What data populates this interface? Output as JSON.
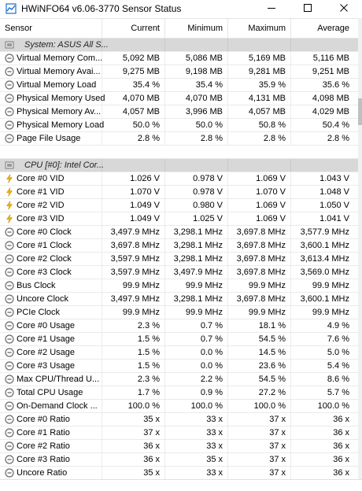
{
  "window": {
    "title": "HWiNFO64 v6.06-3770 Sensor Status",
    "minimize_icon": "minimize-icon",
    "maximize_icon": "maximize-icon",
    "close_icon": "close-icon"
  },
  "columns": [
    "Sensor",
    "Current",
    "Minimum",
    "Maximum",
    "Average"
  ],
  "rows": [
    {
      "kind": "group",
      "name": "System: ASUS All S..."
    },
    {
      "kind": "data",
      "icon": "clock",
      "name": "Virtual Memory Com...",
      "current": "5,092 MB",
      "minimum": "5,086 MB",
      "maximum": "5,169 MB",
      "average": "5,116 MB"
    },
    {
      "kind": "data",
      "icon": "clock",
      "name": "Virtual Memory Avai...",
      "current": "9,275 MB",
      "minimum": "9,198 MB",
      "maximum": "9,281 MB",
      "average": "9,251 MB"
    },
    {
      "kind": "data",
      "icon": "clock",
      "name": "Virtual Memory Load",
      "current": "35.4 %",
      "minimum": "35.4 %",
      "maximum": "35.9 %",
      "average": "35.6 %"
    },
    {
      "kind": "data",
      "icon": "clock",
      "name": "Physical Memory Used",
      "current": "4,070 MB",
      "minimum": "4,070 MB",
      "maximum": "4,131 MB",
      "average": "4,098 MB"
    },
    {
      "kind": "data",
      "icon": "clock",
      "name": "Physical Memory Av...",
      "current": "4,057 MB",
      "minimum": "3,996 MB",
      "maximum": "4,057 MB",
      "average": "4,029 MB"
    },
    {
      "kind": "data",
      "icon": "clock",
      "name": "Physical Memory Load",
      "current": "50.0 %",
      "minimum": "50.0 %",
      "maximum": "50.8 %",
      "average": "50.4 %"
    },
    {
      "kind": "data",
      "icon": "clock",
      "name": "Page File Usage",
      "current": "2.8 %",
      "minimum": "2.8 %",
      "maximum": "2.8 %",
      "average": "2.8 %"
    },
    {
      "kind": "spacer"
    },
    {
      "kind": "group",
      "name": "CPU [#0]: Intel Cor..."
    },
    {
      "kind": "data",
      "icon": "bolt",
      "name": "Core #0 VID",
      "current": "1.026 V",
      "minimum": "0.978 V",
      "maximum": "1.069 V",
      "average": "1.043 V"
    },
    {
      "kind": "data",
      "icon": "bolt",
      "name": "Core #1 VID",
      "current": "1.070 V",
      "minimum": "0.978 V",
      "maximum": "1.070 V",
      "average": "1.048 V"
    },
    {
      "kind": "data",
      "icon": "bolt",
      "name": "Core #2 VID",
      "current": "1.049 V",
      "minimum": "0.980 V",
      "maximum": "1.069 V",
      "average": "1.050 V"
    },
    {
      "kind": "data",
      "icon": "bolt",
      "name": "Core #3 VID",
      "current": "1.049 V",
      "minimum": "1.025 V",
      "maximum": "1.069 V",
      "average": "1.041 V"
    },
    {
      "kind": "data",
      "icon": "clock",
      "name": "Core #0 Clock",
      "current": "3,497.9 MHz",
      "minimum": "3,298.1 MHz",
      "maximum": "3,697.8 MHz",
      "average": "3,577.9 MHz"
    },
    {
      "kind": "data",
      "icon": "clock",
      "name": "Core #1 Clock",
      "current": "3,697.8 MHz",
      "minimum": "3,298.1 MHz",
      "maximum": "3,697.8 MHz",
      "average": "3,600.1 MHz"
    },
    {
      "kind": "data",
      "icon": "clock",
      "name": "Core #2 Clock",
      "current": "3,597.9 MHz",
      "minimum": "3,298.1 MHz",
      "maximum": "3,697.8 MHz",
      "average": "3,613.4 MHz"
    },
    {
      "kind": "data",
      "icon": "clock",
      "name": "Core #3 Clock",
      "current": "3,597.9 MHz",
      "minimum": "3,497.9 MHz",
      "maximum": "3,697.8 MHz",
      "average": "3,569.0 MHz"
    },
    {
      "kind": "data",
      "icon": "clock",
      "name": "Bus Clock",
      "current": "99.9 MHz",
      "minimum": "99.9 MHz",
      "maximum": "99.9 MHz",
      "average": "99.9 MHz"
    },
    {
      "kind": "data",
      "icon": "clock",
      "name": "Uncore Clock",
      "current": "3,497.9 MHz",
      "minimum": "3,298.1 MHz",
      "maximum": "3,697.8 MHz",
      "average": "3,600.1 MHz"
    },
    {
      "kind": "data",
      "icon": "clock",
      "name": "PCIe Clock",
      "current": "99.9 MHz",
      "minimum": "99.9 MHz",
      "maximum": "99.9 MHz",
      "average": "99.9 MHz"
    },
    {
      "kind": "data",
      "icon": "clock",
      "name": "Core #0 Usage",
      "current": "2.3 %",
      "minimum": "0.7 %",
      "maximum": "18.1 %",
      "average": "4.9 %"
    },
    {
      "kind": "data",
      "icon": "clock",
      "name": "Core #1 Usage",
      "current": "1.5 %",
      "minimum": "0.7 %",
      "maximum": "54.5 %",
      "average": "7.6 %"
    },
    {
      "kind": "data",
      "icon": "clock",
      "name": "Core #2 Usage",
      "current": "1.5 %",
      "minimum": "0.0 %",
      "maximum": "14.5 %",
      "average": "5.0 %"
    },
    {
      "kind": "data",
      "icon": "clock",
      "name": "Core #3 Usage",
      "current": "1.5 %",
      "minimum": "0.0 %",
      "maximum": "23.6 %",
      "average": "5.4 %"
    },
    {
      "kind": "data",
      "icon": "clock",
      "name": "Max CPU/Thread U...",
      "current": "2.3 %",
      "minimum": "2.2 %",
      "maximum": "54.5 %",
      "average": "8.6 %"
    },
    {
      "kind": "data",
      "icon": "clock",
      "name": "Total CPU Usage",
      "current": "1.7 %",
      "minimum": "0.9 %",
      "maximum": "27.2 %",
      "average": "5.7 %"
    },
    {
      "kind": "data",
      "icon": "clock",
      "name": "On-Demand Clock ...",
      "current": "100.0 %",
      "minimum": "100.0 %",
      "maximum": "100.0 %",
      "average": "100.0 %"
    },
    {
      "kind": "data",
      "icon": "clock",
      "name": "Core #0 Ratio",
      "current": "35 x",
      "minimum": "33 x",
      "maximum": "37 x",
      "average": "36 x"
    },
    {
      "kind": "data",
      "icon": "clock",
      "name": "Core #1 Ratio",
      "current": "37 x",
      "minimum": "33 x",
      "maximum": "37 x",
      "average": "36 x"
    },
    {
      "kind": "data",
      "icon": "clock",
      "name": "Core #2 Ratio",
      "current": "36 x",
      "minimum": "33 x",
      "maximum": "37 x",
      "average": "36 x"
    },
    {
      "kind": "data",
      "icon": "clock",
      "name": "Core #3 Ratio",
      "current": "36 x",
      "minimum": "35 x",
      "maximum": "37 x",
      "average": "36 x"
    },
    {
      "kind": "data",
      "icon": "clock",
      "name": "Uncore Ratio",
      "current": "35 x",
      "minimum": "33 x",
      "maximum": "37 x",
      "average": "36 x"
    }
  ],
  "colors": {
    "group_bg": "#d8d8d8",
    "bolt": "#f0b400",
    "clock": "#6a6a6a"
  }
}
